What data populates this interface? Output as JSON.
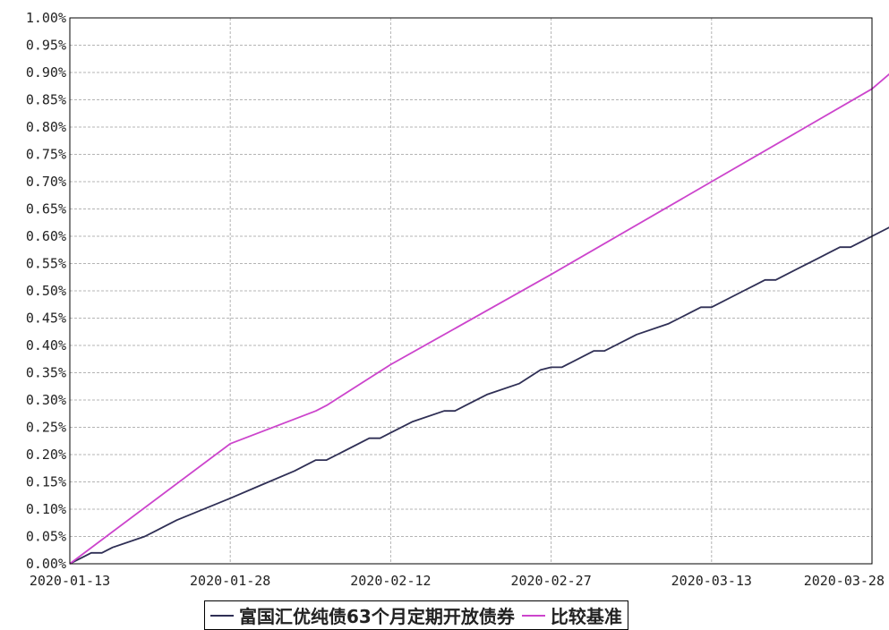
{
  "chart_data": {
    "type": "line",
    "title": "",
    "xlabel": "",
    "ylabel": "",
    "ylim": [
      0,
      0.01
    ],
    "y_ticks": [
      "0.00%",
      "0.05%",
      "0.10%",
      "0.15%",
      "0.20%",
      "0.25%",
      "0.30%",
      "0.35%",
      "0.40%",
      "0.45%",
      "0.50%",
      "0.55%",
      "0.60%",
      "0.65%",
      "0.70%",
      "0.75%",
      "0.80%",
      "0.85%",
      "0.90%",
      "0.95%",
      "1.00%"
    ],
    "x_ticks": [
      "2020-01-13",
      "2020-01-28",
      "2020-02-12",
      "2020-02-27",
      "2020-03-13",
      "2020-03-28"
    ],
    "xlim": [
      "2020-01-13",
      "2020-03-28"
    ],
    "grid": true,
    "legend_position": "bottom-center",
    "series": [
      {
        "name": "富国汇优纯债63个月定期开放债券",
        "color": "#2f2f55",
        "points": [
          [
            "2020-01-13",
            0.0
          ],
          [
            "2020-01-14",
            0.0001
          ],
          [
            "2020-01-15",
            0.0002
          ],
          [
            "2020-01-16",
            0.0002
          ],
          [
            "2020-01-17",
            0.0003
          ],
          [
            "2020-01-20",
            0.0005
          ],
          [
            "2020-01-21",
            0.0006
          ],
          [
            "2020-01-22",
            0.0007
          ],
          [
            "2020-01-23",
            0.0008
          ],
          [
            "2020-01-28",
            0.0012
          ],
          [
            "2020-01-31",
            0.00145
          ],
          [
            "2020-02-03",
            0.0017
          ],
          [
            "2020-02-04",
            0.0018
          ],
          [
            "2020-02-05",
            0.0019
          ],
          [
            "2020-02-06",
            0.0019
          ],
          [
            "2020-02-07",
            0.002
          ],
          [
            "2020-02-10",
            0.0023
          ],
          [
            "2020-02-11",
            0.0023
          ],
          [
            "2020-02-12",
            0.0024
          ],
          [
            "2020-02-14",
            0.0026
          ],
          [
            "2020-02-17",
            0.0028
          ],
          [
            "2020-02-18",
            0.0028
          ],
          [
            "2020-02-19",
            0.0029
          ],
          [
            "2020-02-21",
            0.0031
          ],
          [
            "2020-02-24",
            0.0033
          ],
          [
            "2020-02-26",
            0.00355
          ],
          [
            "2020-02-27",
            0.0036
          ],
          [
            "2020-02-28",
            0.0036
          ],
          [
            "2020-03-02",
            0.0039
          ],
          [
            "2020-03-03",
            0.0039
          ],
          [
            "2020-03-04",
            0.004
          ],
          [
            "2020-03-05",
            0.0041
          ],
          [
            "2020-03-06",
            0.0042
          ],
          [
            "2020-03-09",
            0.0044
          ],
          [
            "2020-03-10",
            0.0045
          ],
          [
            "2020-03-11",
            0.0046
          ],
          [
            "2020-03-12",
            0.0047
          ],
          [
            "2020-03-13",
            0.0047
          ],
          [
            "2020-03-16",
            0.005
          ],
          [
            "2020-03-17",
            0.0051
          ],
          [
            "2020-03-18",
            0.0052
          ],
          [
            "2020-03-19",
            0.0052
          ],
          [
            "2020-03-20",
            0.0053
          ],
          [
            "2020-03-23",
            0.0056
          ],
          [
            "2020-03-24",
            0.0057
          ],
          [
            "2020-03-25",
            0.0058
          ],
          [
            "2020-03-26",
            0.0058
          ],
          [
            "2020-03-27",
            0.0059
          ],
          [
            "2020-03-28",
            0.006
          ],
          [
            "2020-03-30",
            0.0062
          ],
          [
            "2020-03-31",
            0.0063
          ]
        ]
      },
      {
        "name": "比较基准",
        "color": "#cc44cc",
        "points": [
          [
            "2020-01-13",
            0.0
          ],
          [
            "2020-01-28",
            0.0022
          ],
          [
            "2020-02-05",
            0.0028
          ],
          [
            "2020-02-06",
            0.0029
          ],
          [
            "2020-02-12",
            0.00365
          ],
          [
            "2020-02-27",
            0.0053
          ],
          [
            "2020-03-13",
            0.007
          ],
          [
            "2020-03-28",
            0.0087
          ],
          [
            "2020-03-31",
            0.0092
          ]
        ]
      }
    ]
  }
}
